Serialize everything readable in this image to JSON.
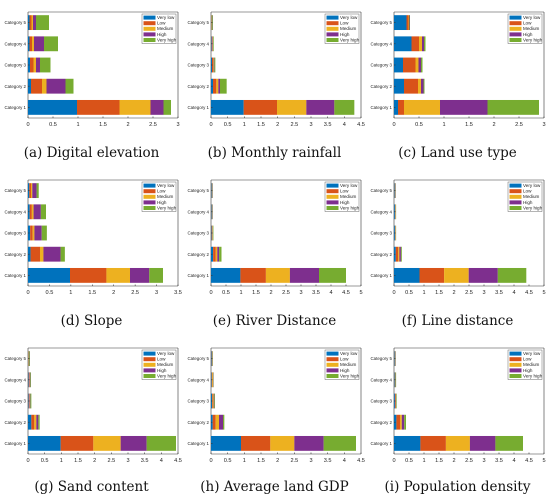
{
  "figure": {
    "panels": [
      {
        "caption": "(a)  Digital elevation"
      },
      {
        "caption": "(b)  Monthly rainfall"
      },
      {
        "caption": "(c)  Land use type"
      },
      {
        "caption": "(d)  Slope"
      },
      {
        "caption": "(e)  River Distance"
      },
      {
        "caption": "(f)  Line distance"
      },
      {
        "caption": "(g)  Sand content"
      },
      {
        "caption": "(h)  Average land GDP"
      },
      {
        "caption": "(i)  Population density"
      }
    ]
  },
  "colors": {
    "Very low": "#0072BD",
    "Low": "#D95319",
    "Medium": "#EDB120",
    "High": "#7E2F8E",
    "Very high": "#77AC30"
  },
  "chart_data": [
    {
      "type": "bar",
      "orientation": "horizontal",
      "stacked": true,
      "categories": [
        "Category 1",
        "Category 2",
        "Category 3",
        "Category 4",
        "Category 5"
      ],
      "xlim": [
        0,
        3
      ],
      "xticks": [
        "0",
        "0.5",
        "1",
        "1.5",
        "2",
        "2.5",
        "3"
      ],
      "legend_position": "top-right",
      "series": [
        {
          "name": "Very low",
          "values": [
            0.98,
            0.06,
            0.04,
            0.03,
            0.03
          ]
        },
        {
          "name": "Low",
          "values": [
            0.85,
            0.22,
            0.07,
            0.05,
            0.04
          ]
        },
        {
          "name": "Medium",
          "values": [
            0.62,
            0.09,
            0.05,
            0.04,
            0.03
          ]
        },
        {
          "name": "High",
          "values": [
            0.26,
            0.38,
            0.08,
            0.2,
            0.06
          ]
        },
        {
          "name": "Very high",
          "values": [
            0.15,
            0.16,
            0.21,
            0.28,
            0.26
          ]
        }
      ]
    },
    {
      "type": "bar",
      "orientation": "horizontal",
      "stacked": true,
      "categories": [
        "Category 1",
        "Category 2",
        "Category 3",
        "Category 4",
        "Category 5"
      ],
      "xlim": [
        0,
        4.5
      ],
      "xticks": [
        "0",
        "0.5",
        "1",
        "1.5",
        "2",
        "2.5",
        "3",
        "3.5",
        "4",
        "4.5"
      ],
      "legend_position": "top-right",
      "series": [
        {
          "name": "Very low",
          "values": [
            0.98,
            0.06,
            0.03,
            0.02,
            0.01
          ]
        },
        {
          "name": "Low",
          "values": [
            1.0,
            0.1,
            0.03,
            0.02,
            0.01
          ]
        },
        {
          "name": "Medium",
          "values": [
            0.88,
            0.06,
            0.02,
            0.01,
            0.01
          ]
        },
        {
          "name": "High",
          "values": [
            0.84,
            0.05,
            0.02,
            0.01,
            0.01
          ]
        },
        {
          "name": "Very high",
          "values": [
            0.6,
            0.2,
            0.03,
            0.02,
            0.02
          ]
        }
      ]
    },
    {
      "type": "bar",
      "orientation": "horizontal",
      "stacked": true,
      "categories": [
        "Category 1",
        "Category 2",
        "Category 3",
        "Category 4",
        "Category 5"
      ],
      "xlim": [
        0,
        3
      ],
      "xticks": [
        "0",
        "0.5",
        "1",
        "1.5",
        "2",
        "2.5",
        "3"
      ],
      "legend_position": "top-right",
      "series": [
        {
          "name": "Very low",
          "values": [
            0.08,
            0.2,
            0.18,
            0.35,
            0.25
          ]
        },
        {
          "name": "Low",
          "values": [
            0.12,
            0.28,
            0.25,
            0.15,
            0.04
          ]
        },
        {
          "name": "Medium",
          "values": [
            0.72,
            0.06,
            0.06,
            0.06,
            0.01
          ]
        },
        {
          "name": "High",
          "values": [
            0.95,
            0.05,
            0.05,
            0.04,
            0.01
          ]
        },
        {
          "name": "Very high",
          "values": [
            1.03,
            0.02,
            0.03,
            0.03,
            0.01
          ]
        }
      ]
    },
    {
      "type": "bar",
      "orientation": "horizontal",
      "stacked": true,
      "categories": [
        "Category 1",
        "Category 2",
        "Category 3",
        "Category 4",
        "Category 5"
      ],
      "xlim": [
        0,
        3.5
      ],
      "xticks": [
        "0",
        "0.5",
        "1",
        "1.5",
        "2",
        "2.5",
        "3",
        "3.5"
      ],
      "legend_position": "top-right",
      "series": [
        {
          "name": "Very low",
          "values": [
            0.98,
            0.06,
            0.05,
            0.04,
            0.03
          ]
        },
        {
          "name": "Low",
          "values": [
            0.85,
            0.22,
            0.06,
            0.05,
            0.04
          ]
        },
        {
          "name": "Medium",
          "values": [
            0.55,
            0.08,
            0.04,
            0.04,
            0.03
          ]
        },
        {
          "name": "High",
          "values": [
            0.45,
            0.4,
            0.17,
            0.17,
            0.1
          ]
        },
        {
          "name": "Very high",
          "values": [
            0.32,
            0.1,
            0.12,
            0.12,
            0.05
          ]
        }
      ]
    },
    {
      "type": "bar",
      "orientation": "horizontal",
      "stacked": true,
      "categories": [
        "Category 1",
        "Category 2",
        "Category 3",
        "Category 4",
        "Category 5"
      ],
      "xlim": [
        0,
        5
      ],
      "xticks": [
        "0",
        "0.5",
        "1",
        "1.5",
        "2",
        "2.5",
        "3",
        "3.5",
        "4",
        "4.5",
        "5"
      ],
      "legend_position": "top-right",
      "series": [
        {
          "name": "Very low",
          "values": [
            0.98,
            0.07,
            0.02,
            0.02,
            0.02
          ]
        },
        {
          "name": "Low",
          "values": [
            0.85,
            0.09,
            0.02,
            0.01,
            0.01
          ]
        },
        {
          "name": "Medium",
          "values": [
            0.8,
            0.05,
            0.01,
            0.01,
            0.01
          ]
        },
        {
          "name": "High",
          "values": [
            0.97,
            0.06,
            0.01,
            0.01,
            0.01
          ]
        },
        {
          "name": "Very high",
          "values": [
            0.9,
            0.08,
            0.02,
            0.01,
            0.01
          ]
        }
      ]
    },
    {
      "type": "bar",
      "orientation": "horizontal",
      "stacked": true,
      "categories": [
        "Category 1",
        "Category 2",
        "Category 3",
        "Category 4",
        "Category 5"
      ],
      "xlim": [
        0,
        5
      ],
      "xticks": [
        "0",
        "0.5",
        "1",
        "1.5",
        "2",
        "2.5",
        "3",
        "3.5",
        "4",
        "4.5",
        "5"
      ],
      "legend_position": "top-right",
      "series": [
        {
          "name": "Very low",
          "values": [
            0.85,
            0.06,
            0.03,
            0.03,
            0.02
          ]
        },
        {
          "name": "Low",
          "values": [
            0.82,
            0.08,
            0.01,
            0.01,
            0.01
          ]
        },
        {
          "name": "Medium",
          "values": [
            0.82,
            0.04,
            0.01,
            0.01,
            0.01
          ]
        },
        {
          "name": "High",
          "values": [
            0.97,
            0.05,
            0.01,
            0.01,
            0.01
          ]
        },
        {
          "name": "Very high",
          "values": [
            0.95,
            0.03,
            0.01,
            0.01,
            0.01
          ]
        }
      ]
    },
    {
      "type": "bar",
      "orientation": "horizontal",
      "stacked": true,
      "categories": [
        "Category 1",
        "Category 2",
        "Category 3",
        "Category 4",
        "Category 5"
      ],
      "xlim": [
        0,
        4.5
      ],
      "xticks": [
        "0",
        "0.5",
        "1",
        "1.5",
        "2",
        "2.5",
        "3",
        "3.5",
        "4",
        "4.5"
      ],
      "legend_position": "top-right",
      "series": [
        {
          "name": "Very low",
          "values": [
            0.98,
            0.1,
            0.02,
            0.02,
            0.01
          ]
        },
        {
          "name": "Low",
          "values": [
            0.98,
            0.09,
            0.02,
            0.02,
            0.01
          ]
        },
        {
          "name": "Medium",
          "values": [
            0.82,
            0.06,
            0.01,
            0.01,
            0.01
          ]
        },
        {
          "name": "High",
          "values": [
            0.78,
            0.06,
            0.02,
            0.02,
            0.01
          ]
        },
        {
          "name": "Very high",
          "values": [
            0.88,
            0.04,
            0.03,
            0.02,
            0.02
          ]
        }
      ]
    },
    {
      "type": "bar",
      "orientation": "horizontal",
      "stacked": true,
      "categories": [
        "Category 1",
        "Category 2",
        "Category 3",
        "Category 4",
        "Category 5"
      ],
      "xlim": [
        0,
        4.5
      ],
      "xticks": [
        "0",
        "0.5",
        "1",
        "1.5",
        "2",
        "2.5",
        "3",
        "3.5",
        "4",
        "4.5"
      ],
      "legend_position": "top-right",
      "series": [
        {
          "name": "Very low",
          "values": [
            0.9,
            0.05,
            0.03,
            0.02,
            0.02
          ]
        },
        {
          "name": "Low",
          "values": [
            0.88,
            0.09,
            0.02,
            0.02,
            0.01
          ]
        },
        {
          "name": "Medium",
          "values": [
            0.72,
            0.1,
            0.03,
            0.02,
            0.01
          ]
        },
        {
          "name": "High",
          "values": [
            0.88,
            0.12,
            0.02,
            0.01,
            0.01
          ]
        },
        {
          "name": "Very high",
          "values": [
            0.97,
            0.04,
            0.02,
            0.01,
            0.01
          ]
        }
      ]
    },
    {
      "type": "bar",
      "orientation": "horizontal",
      "stacked": true,
      "categories": [
        "Category 1",
        "Category 2",
        "Category 3",
        "Category 4",
        "Category 5"
      ],
      "xlim": [
        0,
        5
      ],
      "xticks": [
        "0",
        "0.5",
        "1",
        "1.5",
        "2",
        "2.5",
        "3",
        "3.5",
        "4",
        "4.5",
        "5"
      ],
      "legend_position": "top-right",
      "series": [
        {
          "name": "Very low",
          "values": [
            0.88,
            0.08,
            0.03,
            0.02,
            0.02
          ]
        },
        {
          "name": "Low",
          "values": [
            0.85,
            0.12,
            0.02,
            0.01,
            0.01
          ]
        },
        {
          "name": "Medium",
          "values": [
            0.8,
            0.06,
            0.01,
            0.01,
            0.01
          ]
        },
        {
          "name": "High",
          "values": [
            0.85,
            0.08,
            0.01,
            0.01,
            0.01
          ]
        },
        {
          "name": "Very high",
          "values": [
            0.92,
            0.06,
            0.02,
            0.02,
            0.01
          ]
        }
      ]
    }
  ]
}
